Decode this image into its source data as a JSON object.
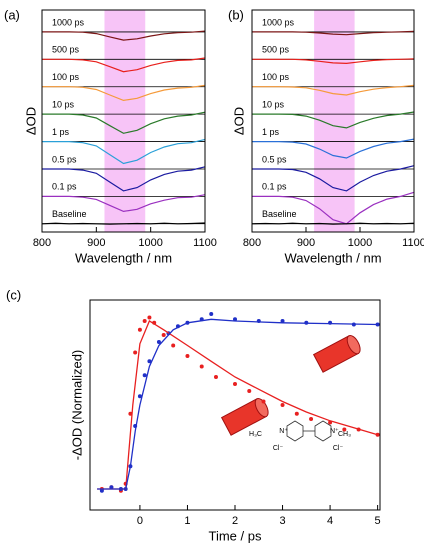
{
  "chart_data": [
    {
      "type": "line",
      "panel_label": "(a)",
      "x_label": "Wavelength / nm",
      "y_label": "ΔOD",
      "xlim": [
        800,
        1100
      ],
      "xticks": [
        800,
        900,
        1000,
        1100
      ],
      "ylim": [
        -0.3,
        7.8
      ],
      "highlight": [
        915,
        990
      ],
      "highlight_color": "#f7c4f7",
      "x": [
        800,
        825,
        850,
        875,
        900,
        925,
        950,
        975,
        1000,
        1025,
        1050,
        1075,
        1100
      ],
      "series": [
        {
          "name": "1000 ps",
          "color": "#7b1515",
          "baseline": 7,
          "values": [
            7,
            7,
            7,
            6.99,
            6.94,
            6.82,
            6.7,
            6.75,
            6.85,
            6.93,
            6.97,
            6.99,
            7.03
          ]
        },
        {
          "name": "500 ps",
          "color": "#e8201c",
          "baseline": 6,
          "values": [
            6,
            6,
            6,
            5.98,
            5.91,
            5.73,
            5.55,
            5.62,
            5.78,
            5.89,
            5.96,
            5.98,
            6.05
          ]
        },
        {
          "name": "100 ps",
          "color": "#f59a3a",
          "baseline": 5,
          "values": [
            5,
            5,
            5,
            4.98,
            4.9,
            4.7,
            4.5,
            4.58,
            4.75,
            4.88,
            4.95,
            4.98,
            5.05
          ]
        },
        {
          "name": "10 ps",
          "color": "#2a7a2a",
          "baseline": 4,
          "values": [
            4,
            4,
            4,
            3.97,
            3.86,
            3.58,
            3.3,
            3.41,
            3.65,
            3.83,
            3.93,
            3.97,
            4.07
          ]
        },
        {
          "name": "1 ps",
          "color": "#2aa0d8",
          "baseline": 3,
          "values": [
            3,
            3,
            3,
            2.96,
            2.84,
            2.52,
            2.2,
            2.32,
            2.6,
            2.8,
            2.92,
            2.96,
            3.08
          ]
        },
        {
          "name": "0.5 ps",
          "color": "#1a1aa0",
          "baseline": 2,
          "values": [
            2,
            2,
            2,
            1.96,
            1.84,
            1.52,
            1.2,
            1.32,
            1.6,
            1.8,
            1.92,
            1.96,
            2.08
          ]
        },
        {
          "name": "0.1 ps",
          "color": "#9a30c0",
          "baseline": 1,
          "values": [
            1,
            1,
            1,
            0.97,
            0.89,
            0.67,
            0.45,
            0.53,
            0.73,
            0.86,
            0.95,
            0.97,
            1.06
          ]
        },
        {
          "name": "Baseline",
          "color": "#000000",
          "baseline": 0,
          "values": [
            0,
            0.02,
            0,
            0.01,
            0,
            -0.01,
            0,
            0.01,
            0,
            0.02,
            0,
            0.01,
            0.03
          ]
        }
      ]
    },
    {
      "type": "line",
      "panel_label": "(b)",
      "x_label": "Wavelength / nm",
      "y_label": "ΔOD",
      "xlim": [
        800,
        1100
      ],
      "xticks": [
        800,
        900,
        1000,
        1100
      ],
      "ylim": [
        -0.3,
        7.8
      ],
      "highlight": [
        915,
        990
      ],
      "highlight_color": "#f7c4f7",
      "x": [
        800,
        825,
        850,
        875,
        900,
        925,
        950,
        975,
        1000,
        1025,
        1050,
        1075,
        1100
      ],
      "series": [
        {
          "name": "1000 ps",
          "color": "#7b1515",
          "baseline": 7,
          "values": [
            7,
            7,
            7,
            7,
            6.99,
            6.96,
            6.92,
            6.9,
            6.94,
            6.97,
            6.99,
            7,
            7.02
          ]
        },
        {
          "name": "500 ps",
          "color": "#e8201c",
          "baseline": 6,
          "values": [
            6,
            6,
            6,
            6,
            5.98,
            5.93,
            5.87,
            5.85,
            5.91,
            5.96,
            5.99,
            6,
            6.02
          ]
        },
        {
          "name": "100 ps",
          "color": "#f59a3a",
          "baseline": 5,
          "values": [
            5,
            5,
            5,
            4.99,
            4.96,
            4.87,
            4.75,
            4.7,
            4.82,
            4.91,
            4.97,
            5,
            5.05
          ]
        },
        {
          "name": "10 ps",
          "color": "#2a7a2a",
          "baseline": 4,
          "values": [
            4,
            4,
            4,
            3.99,
            3.93,
            3.78,
            3.58,
            3.5,
            3.7,
            3.85,
            3.95,
            4,
            4.08
          ]
        },
        {
          "name": "1 ps",
          "color": "#2a70d8",
          "baseline": 3,
          "values": [
            3,
            3,
            3,
            2.98,
            2.91,
            2.73,
            2.49,
            2.4,
            2.64,
            2.82,
            2.94,
            3,
            3.09
          ]
        },
        {
          "name": "0.5 ps",
          "color": "#1a1aa0",
          "baseline": 2,
          "values": [
            2,
            2,
            2,
            1.98,
            1.88,
            1.64,
            1.32,
            1.2,
            1.52,
            1.76,
            1.92,
            2,
            2.12
          ]
        },
        {
          "name": "0.1 ps",
          "color": "#9a30c0",
          "baseline": 1,
          "values": [
            1,
            1,
            1,
            0.97,
            0.85,
            0.55,
            0.15,
            0,
            0.4,
            0.7,
            0.9,
            1,
            1.15
          ]
        },
        {
          "name": "Baseline",
          "color": "#000000",
          "baseline": 0,
          "values": [
            0,
            0.01,
            0,
            0.02,
            0,
            0.01,
            -0.01,
            0,
            0.02,
            0,
            0.01,
            0,
            0.02
          ]
        }
      ]
    },
    {
      "type": "scatter",
      "panel_label": "(c)",
      "x_label": "Time / ps",
      "y_label": "-ΔOD (Normalized)",
      "xlim": [
        -1.05,
        5.05
      ],
      "xticks": [
        0,
        1,
        2,
        3,
        4,
        5
      ],
      "ylim": [
        -0.1,
        1.1
      ],
      "annotations": [
        "H₃C",
        "N⁺",
        "N⁺",
        "CH₃",
        "Cl⁻",
        "Cl⁻"
      ],
      "series": [
        {
          "kind": "points",
          "color": "#e82020",
          "x": [
            -0.8,
            -0.6,
            -0.4,
            -0.3,
            -0.2,
            -0.1,
            0,
            0.1,
            0.2,
            0.3,
            0.5,
            0.7,
            1,
            1.3,
            1.6,
            2,
            2.3,
            2.6,
            3,
            3.3,
            3.6,
            4,
            4.3,
            4.6,
            5
          ],
          "values": [
            0.02,
            0.03,
            0.01,
            0.05,
            0.45,
            0.8,
            0.93,
            0.98,
            1.0,
            0.97,
            0.9,
            0.84,
            0.78,
            0.72,
            0.66,
            0.62,
            0.58,
            0.52,
            0.5,
            0.45,
            0.42,
            0.4,
            0.36,
            0.36,
            0.33
          ]
        },
        {
          "kind": "points",
          "color": "#2030c8",
          "x": [
            -0.8,
            -0.6,
            -0.4,
            -0.3,
            -0.2,
            -0.1,
            0,
            0.1,
            0.2,
            0.4,
            0.6,
            0.8,
            1,
            1.3,
            1.5,
            2,
            2.5,
            3,
            3.5,
            4,
            4.5,
            5
          ],
          "values": [
            0.01,
            0.03,
            0.02,
            0.02,
            0.15,
            0.38,
            0.55,
            0.67,
            0.75,
            0.86,
            0.91,
            0.95,
            0.97,
            0.99,
            1.02,
            0.99,
            0.98,
            0.98,
            0.97,
            0.97,
            0.96,
            0.96
          ]
        },
        {
          "kind": "fit",
          "color": "#e82020",
          "x": [
            -0.9,
            -0.3,
            -0.15,
            0,
            0.2,
            0.5,
            1,
            1.5,
            2,
            2.5,
            3,
            3.5,
            4,
            4.5,
            5
          ],
          "values": [
            0.02,
            0.02,
            0.5,
            0.85,
            0.98,
            0.93,
            0.84,
            0.75,
            0.66,
            0.59,
            0.52,
            0.46,
            0.41,
            0.37,
            0.33
          ]
        },
        {
          "kind": "fit",
          "color": "#2030c8",
          "x": [
            -0.9,
            -0.3,
            -0.2,
            -0.1,
            0,
            0.2,
            0.4,
            0.7,
            1,
            1.5,
            2,
            3,
            4,
            5
          ],
          "values": [
            0.02,
            0.02,
            0.15,
            0.35,
            0.5,
            0.72,
            0.84,
            0.93,
            0.97,
            0.99,
            0.98,
            0.97,
            0.965,
            0.96
          ]
        }
      ]
    }
  ]
}
